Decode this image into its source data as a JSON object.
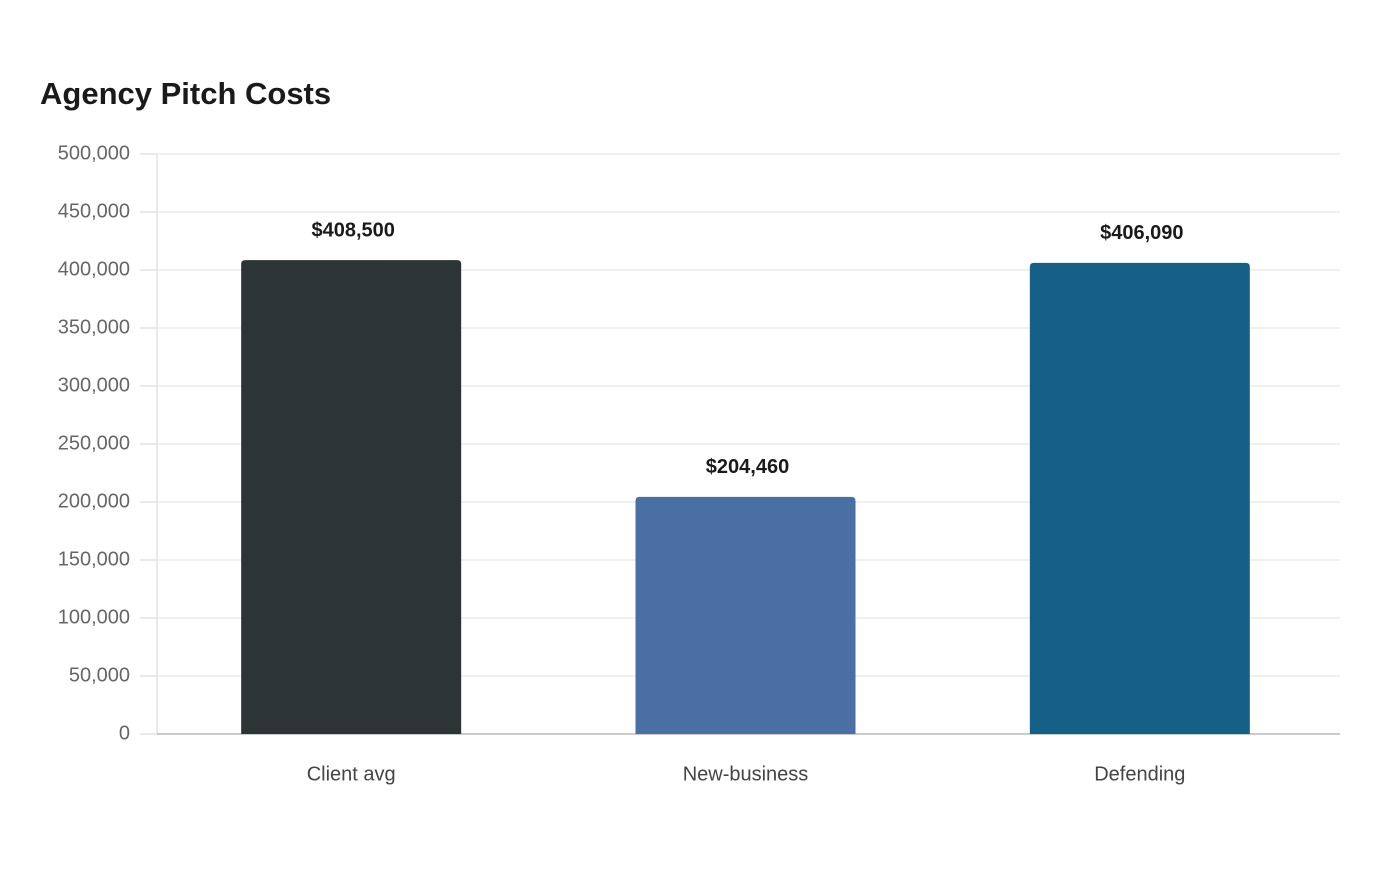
{
  "chart_data": {
    "type": "bar",
    "title": "Agency Pitch Costs",
    "categories": [
      "Client avg",
      "New-business",
      "Defending"
    ],
    "values": [
      408500,
      204460,
      406090
    ],
    "value_labels": [
      "$408,500",
      "$204,460",
      "$406,090"
    ],
    "colors": [
      "#2d3436",
      "#4a6fa5",
      "#166088"
    ],
    "ylim": [
      0,
      500000
    ],
    "yticks": [
      0,
      {
        "value": 50000,
        "label": "50,000"
      },
      {
        "value": 100000,
        "label": "100,000"
      },
      {
        "value": 150000,
        "label": "150,000"
      },
      {
        "value": 200000,
        "label": "200,000"
      },
      {
        "value": 250000,
        "label": "250,000"
      },
      {
        "value": 300000,
        "label": "300,000"
      },
      {
        "value": 350000,
        "label": "350,000"
      },
      {
        "value": 400000,
        "label": "400,000"
      },
      {
        "value": 450000,
        "label": "450,000"
      },
      {
        "value": 500000,
        "label": "500,000"
      }
    ],
    "grid": true
  }
}
